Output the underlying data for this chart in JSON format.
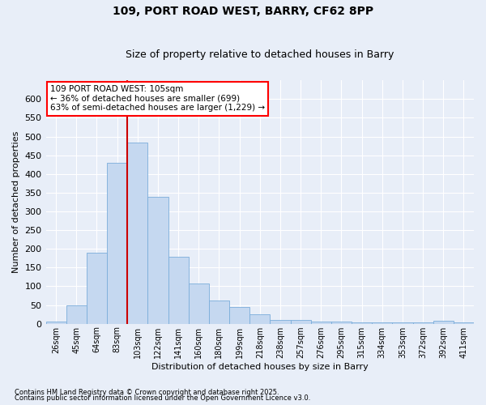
{
  "title1": "109, PORT ROAD WEST, BARRY, CF62 8PP",
  "title2": "Size of property relative to detached houses in Barry",
  "xlabel": "Distribution of detached houses by size in Barry",
  "ylabel": "Number of detached properties",
  "categories": [
    "26sqm",
    "45sqm",
    "64sqm",
    "83sqm",
    "103sqm",
    "122sqm",
    "141sqm",
    "160sqm",
    "180sqm",
    "199sqm",
    "218sqm",
    "238sqm",
    "257sqm",
    "276sqm",
    "295sqm",
    "315sqm",
    "334sqm",
    "353sqm",
    "372sqm",
    "392sqm",
    "411sqm"
  ],
  "values": [
    5,
    50,
    190,
    430,
    483,
    338,
    178,
    108,
    62,
    45,
    25,
    10,
    10,
    5,
    5,
    3,
    3,
    3,
    3,
    7,
    3
  ],
  "bar_color": "#c5d8f0",
  "bar_edge_color": "#7aaddb",
  "background_color": "#e8eef8",
  "grid_color": "#ffffff",
  "vline_color": "#cc0000",
  "vline_index": 3.5,
  "annotation_text": "109 PORT ROAD WEST: 105sqm\n← 36% of detached houses are smaller (699)\n63% of semi-detached houses are larger (1,229) →",
  "footnote1": "Contains HM Land Registry data © Crown copyright and database right 2025.",
  "footnote2": "Contains public sector information licensed under the Open Government Licence v3.0.",
  "ylim_max": 650,
  "yticks": [
    0,
    50,
    100,
    150,
    200,
    250,
    300,
    350,
    400,
    450,
    500,
    550,
    600
  ]
}
